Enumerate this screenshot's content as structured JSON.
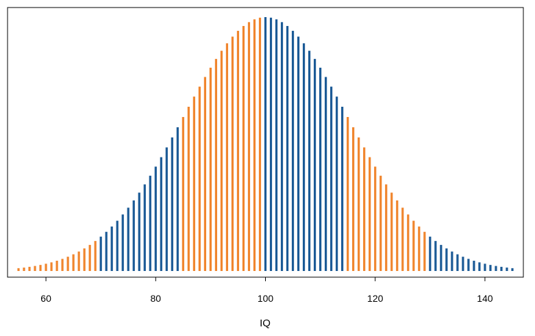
{
  "chart_data": {
    "type": "bar",
    "title": "",
    "xlabel": "IQ",
    "ylabel": "",
    "x_range": [
      55,
      145
    ],
    "x_step": 1,
    "distribution": {
      "mean": 100,
      "sd": 15,
      "family": "normal"
    },
    "xlim": [
      53,
      147
    ],
    "xticks": [
      60,
      80,
      100,
      120,
      140
    ],
    "grid": false,
    "legend": "none",
    "band_edges": [
      55,
      70,
      85,
      100,
      115,
      130,
      145
    ],
    "band_colors": [
      "#F0852D",
      "#1B5A96",
      "#F0852D",
      "#1B5A96",
      "#F0852D",
      "#1B5A96"
    ],
    "colors": {
      "orange": "#F0852D",
      "blue": "#1B5A96"
    }
  }
}
